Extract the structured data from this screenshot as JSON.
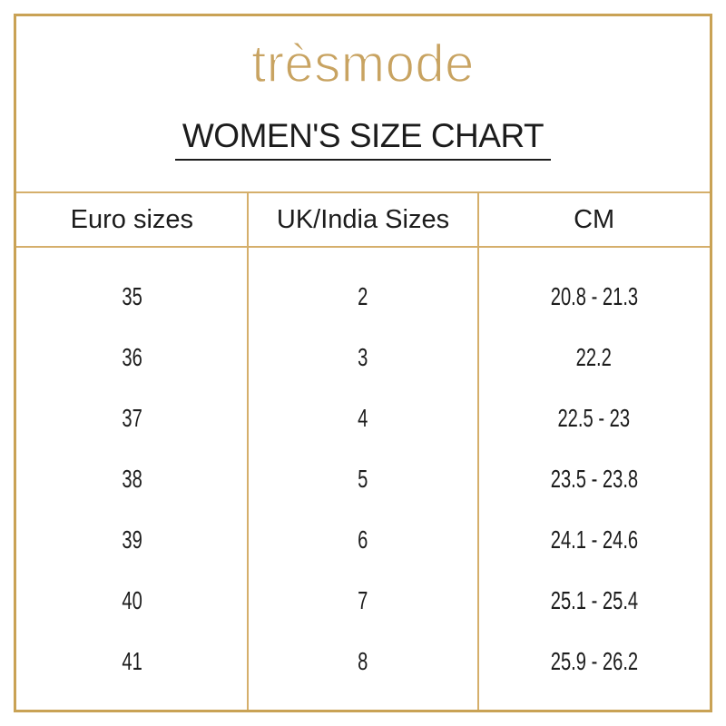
{
  "brand": {
    "logo_text": "trèsmode"
  },
  "header": {
    "title": "WOMEN'S SIZE CHART"
  },
  "table": {
    "columns": [
      "Euro sizes",
      "UK/India Sizes",
      "CM"
    ],
    "rows": [
      {
        "euro": "35",
        "uk": "2",
        "cm": "20.8 - 21.3"
      },
      {
        "euro": "36",
        "uk": "3",
        "cm": "22.2"
      },
      {
        "euro": "37",
        "uk": "4",
        "cm": "22.5 - 23"
      },
      {
        "euro": "38",
        "uk": "5",
        "cm": "23.5 - 23.8"
      },
      {
        "euro": "39",
        "uk": "6",
        "cm": "24.1 - 24.6"
      },
      {
        "euro": "40",
        "uk": "7",
        "cm": "25.1 - 25.4"
      },
      {
        "euro": "41",
        "uk": "8",
        "cm": "25.9 - 26.2"
      }
    ]
  },
  "colors": {
    "brand_gold": "#c8a361",
    "frame_border_gold": "#c9a255",
    "grid_line_gold": "#d5af6b",
    "text": "#1c1c1c"
  }
}
